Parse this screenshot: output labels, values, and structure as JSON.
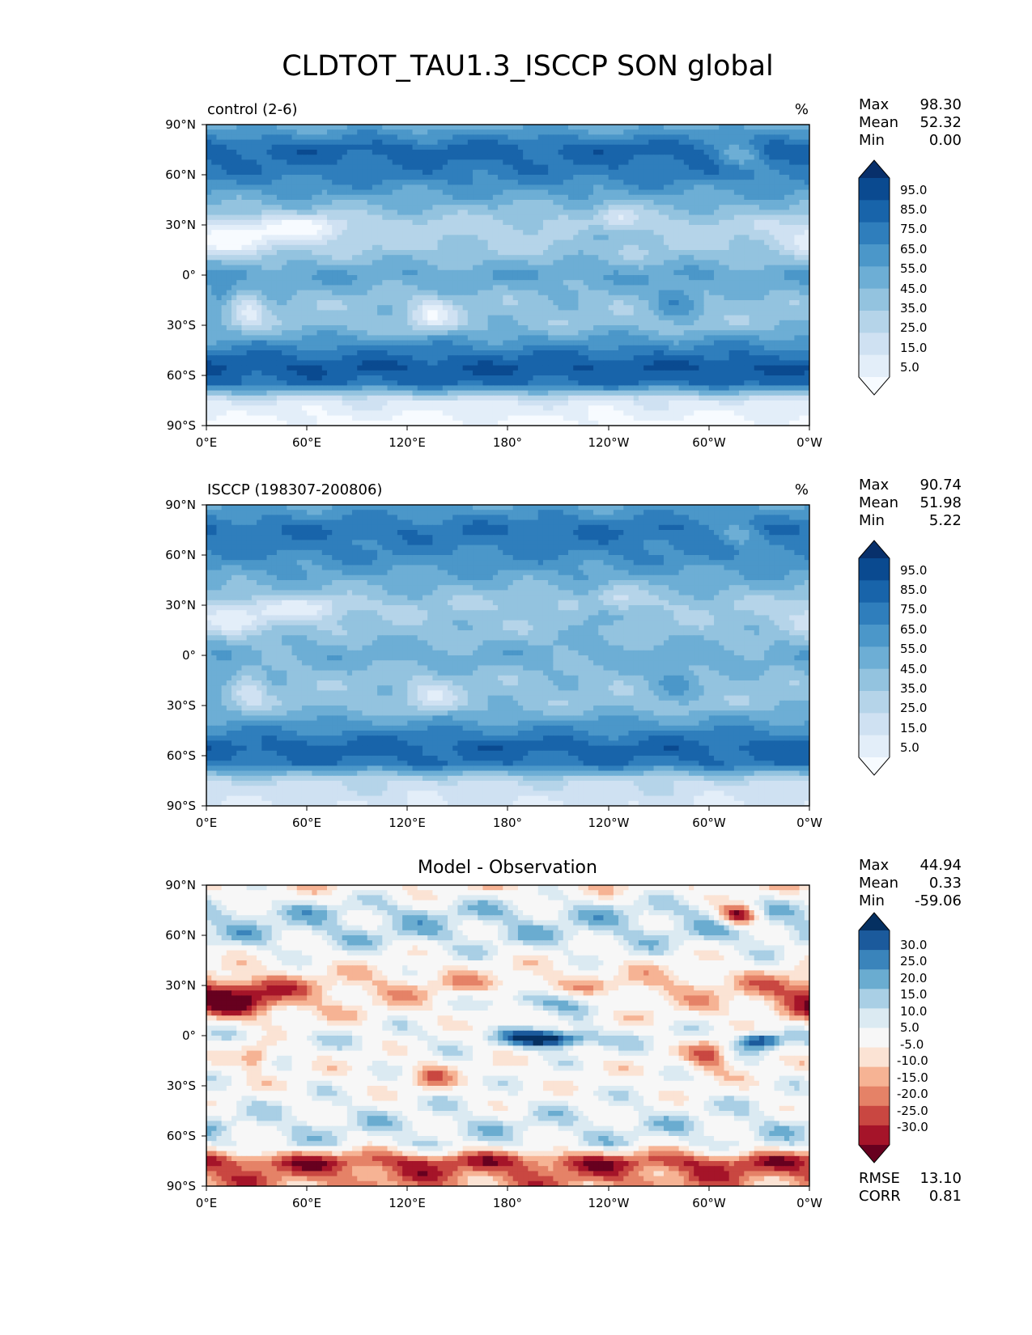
{
  "title": "CLDTOT_TAU1.3_ISCCP SON global",
  "lat_ticks": [
    "90°N",
    "60°N",
    "30°N",
    "0°",
    "30°S",
    "60°S",
    "90°S"
  ],
  "lon_ticks": [
    "0°E",
    "60°E",
    "120°E",
    "180°",
    "120°W",
    "60°W",
    "0°W"
  ],
  "stat_labels": {
    "max": "Max",
    "mean": "Mean",
    "min": "Min",
    "rmse": "RMSE",
    "corr": "CORR"
  },
  "panels": [
    {
      "id": "test",
      "left_title": "control (2-6)",
      "units": "%",
      "max": "98.30",
      "mean": "52.32",
      "min": "0.00",
      "cbar_labels": [
        "95.0",
        "85.0",
        "75.0",
        "65.0",
        "55.0",
        "45.0",
        "35.0",
        "25.0",
        "15.0",
        "5.0"
      ]
    },
    {
      "id": "ref",
      "left_title": "ISCCP (198307-200806)",
      "units": "%",
      "max": "90.74",
      "mean": "51.98",
      "min": "5.22",
      "cbar_labels": [
        "95.0",
        "85.0",
        "75.0",
        "65.0",
        "55.0",
        "45.0",
        "35.0",
        "25.0",
        "15.0",
        "5.0"
      ]
    },
    {
      "id": "diff",
      "center_title": "Model - Observation",
      "max": "44.94",
      "mean": "0.33",
      "min": "-59.06",
      "rmse": "13.10",
      "corr": "0.81",
      "cbar_labels": [
        "30.0",
        "25.0",
        "20.0",
        "15.0",
        "10.0",
        "5.0",
        "-5.0",
        "-10.0",
        "-15.0",
        "-20.0",
        "-25.0",
        "-30.0"
      ]
    }
  ],
  "colors": {
    "blues": [
      "#f7fbff",
      "#e3eef9",
      "#cfe1f2",
      "#b5d4e9",
      "#93c3df",
      "#6daed5",
      "#4b97c9",
      "#2f7ebc",
      "#1864aa",
      "#0a4a90",
      "#08306b"
    ],
    "rdbu": [
      "#67001f",
      "#a51429",
      "#c94741",
      "#e58267",
      "#f6b394",
      "#fbe3d4",
      "#f7f7f7",
      "#dbeaf2",
      "#a9cfe5",
      "#6aacd0",
      "#3a84bb",
      "#1b5a9c",
      "#053061"
    ]
  },
  "chart_data": [
    {
      "type": "heatmap",
      "title": "control (2-6)",
      "units": "%",
      "projection": "PlateCarree, central longitude 180",
      "stats": {
        "max": 98.3,
        "mean": 52.32,
        "min": 0.0
      },
      "levels": [
        0,
        10,
        20,
        30,
        40,
        50,
        60,
        70,
        80,
        90,
        100
      ],
      "colorbar_extend": "both",
      "zonal_mean_profile": {
        "lat": [
          90,
          75,
          60,
          45,
          30,
          15,
          0,
          -15,
          -30,
          -45,
          -55,
          -65,
          -75,
          -90
        ],
        "value": [
          55,
          85,
          75,
          55,
          35,
          40,
          60,
          45,
          45,
          75,
          90,
          80,
          20,
          5
        ]
      }
    },
    {
      "type": "heatmap",
      "title": "ISCCP (198307-200806)",
      "units": "%",
      "projection": "PlateCarree, central longitude 180",
      "stats": {
        "max": 90.74,
        "mean": 51.98,
        "min": 5.22
      },
      "levels": [
        0,
        10,
        20,
        30,
        40,
        50,
        60,
        70,
        80,
        90,
        100
      ],
      "colorbar_extend": "both",
      "zonal_mean_profile": {
        "lat": [
          90,
          75,
          60,
          45,
          30,
          15,
          0,
          -15,
          -30,
          -45,
          -55,
          -65,
          -75,
          -90
        ],
        "value": [
          60,
          80,
          70,
          55,
          40,
          45,
          55,
          45,
          45,
          70,
          85,
          78,
          30,
          20
        ]
      }
    },
    {
      "type": "heatmap",
      "title": "Model - Observation",
      "units": "%",
      "projection": "PlateCarree, central longitude 180",
      "stats": {
        "max": 44.94,
        "mean": 0.33,
        "min": -59.06,
        "rmse": 13.1,
        "corr": 0.81
      },
      "levels": [
        -35,
        -30,
        -25,
        -20,
        -15,
        -10,
        -5,
        5,
        10,
        15,
        20,
        25,
        30,
        35
      ],
      "colorbar_extend": "both",
      "zonal_mean_profile": {
        "lat": [
          90,
          75,
          60,
          45,
          30,
          15,
          0,
          -15,
          -30,
          -45,
          -55,
          -65,
          -75,
          -90
        ],
        "value": [
          -5,
          10,
          10,
          0,
          -10,
          -5,
          5,
          0,
          0,
          5,
          8,
          5,
          -25,
          -15
        ]
      }
    }
  ]
}
